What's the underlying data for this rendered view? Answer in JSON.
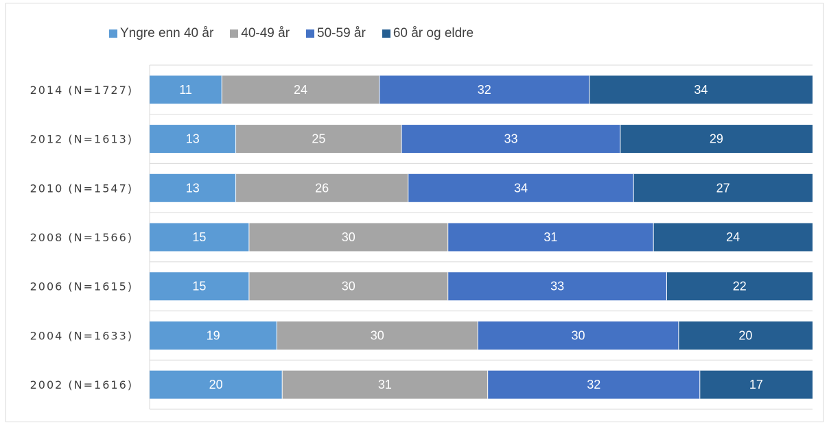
{
  "chart_data": {
    "type": "bar",
    "orientation": "horizontal",
    "stacked": true,
    "categories": [
      "2014 (N=1727)",
      "2012 (N=1613)",
      "2010 (N=1547)",
      "2008 (N=1566)",
      "2006 (N=1615)",
      "2004 (N=1633)",
      "2002 (N=1616)"
    ],
    "series": [
      {
        "name": "Yngre enn 40 år",
        "color": "#5b9bd5",
        "values": [
          11,
          13,
          13,
          15,
          15,
          19,
          20
        ]
      },
      {
        "name": "40-49 år",
        "color": "#a5a5a5",
        "values": [
          24,
          25,
          26,
          30,
          30,
          30,
          31
        ]
      },
      {
        "name": "50-59 år",
        "color": "#4472c4",
        "values": [
          32,
          33,
          34,
          31,
          33,
          30,
          32
        ]
      },
      {
        "name": "60 år og eldre",
        "color": "#255e91",
        "values": [
          34,
          29,
          27,
          24,
          22,
          20,
          17
        ]
      }
    ],
    "title": "",
    "xlabel": "",
    "ylabel": "",
    "grid": true,
    "legend_position": "top-left"
  }
}
